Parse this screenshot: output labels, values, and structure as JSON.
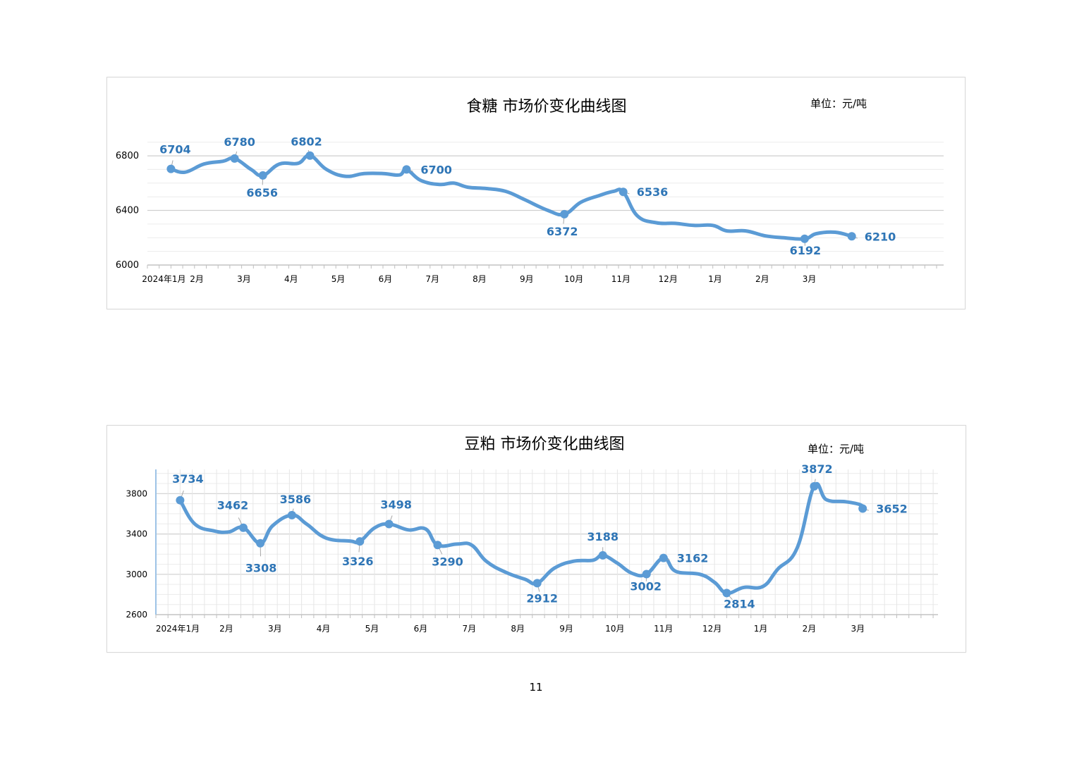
{
  "page": {
    "page_number": "11"
  },
  "colors": {
    "line": "#5b9bd5",
    "label": "#2e75b6",
    "grid": "#d9d9d9",
    "axis_text": "#000000"
  },
  "chart_data": [
    {
      "type": "line",
      "title": "食糖  市场价变化曲线图",
      "unit": "单位：元/吨",
      "ylim": [
        6000,
        6950
      ],
      "yticks": [
        6000,
        6400,
        6800
      ],
      "grid": "horizontal",
      "xlim": [
        0,
        16.9
      ],
      "month_labels": [
        {
          "label": "2024年1月",
          "x": 0.35
        },
        {
          "label": "2月",
          "x": 1.05
        },
        {
          "label": "3月",
          "x": 2.05
        },
        {
          "label": "4月",
          "x": 3.05
        },
        {
          "label": "5月",
          "x": 4.05
        },
        {
          "label": "6月",
          "x": 5.05
        },
        {
          "label": "7月",
          "x": 6.05
        },
        {
          "label": "8月",
          "x": 7.05
        },
        {
          "label": "9月",
          "x": 8.05
        },
        {
          "label": "10月",
          "x": 9.05
        },
        {
          "label": "11月",
          "x": 10.05
        },
        {
          "label": "12月",
          "x": 11.05
        },
        {
          "label": "1月",
          "x": 12.05
        },
        {
          "label": "2月",
          "x": 13.05
        },
        {
          "label": "3月",
          "x": 14.05
        }
      ],
      "series": [
        {
          "points": [
            [
              0.5,
              6704
            ],
            [
              0.8,
              6680
            ],
            [
              1.2,
              6740
            ],
            [
              1.6,
              6760
            ],
            [
              1.85,
              6780
            ],
            [
              2.2,
              6700
            ],
            [
              2.45,
              6656
            ],
            [
              2.8,
              6740
            ],
            [
              3.2,
              6745
            ],
            [
              3.45,
              6802
            ],
            [
              3.8,
              6700
            ],
            [
              4.2,
              6650
            ],
            [
              4.6,
              6670
            ],
            [
              5.0,
              6670
            ],
            [
              5.35,
              6660
            ],
            [
              5.5,
              6700
            ],
            [
              5.8,
              6620
            ],
            [
              6.2,
              6590
            ],
            [
              6.5,
              6600
            ],
            [
              6.8,
              6570
            ],
            [
              7.2,
              6560
            ],
            [
              7.6,
              6540
            ],
            [
              8.0,
              6480
            ],
            [
              8.5,
              6400
            ],
            [
              8.85,
              6372
            ],
            [
              9.2,
              6460
            ],
            [
              9.6,
              6510
            ],
            [
              9.9,
              6540
            ],
            [
              10.1,
              6536
            ],
            [
              10.4,
              6360
            ],
            [
              10.8,
              6310
            ],
            [
              11.2,
              6305
            ],
            [
              11.6,
              6290
            ],
            [
              12.0,
              6290
            ],
            [
              12.3,
              6250
            ],
            [
              12.7,
              6250
            ],
            [
              13.1,
              6215
            ],
            [
              13.5,
              6200
            ],
            [
              13.95,
              6192
            ],
            [
              14.2,
              6230
            ],
            [
              14.6,
              6240
            ],
            [
              14.95,
              6210
            ]
          ],
          "markers": [
            {
              "x": 0.5,
              "y": 6704,
              "label": "6704"
            },
            {
              "x": 1.85,
              "y": 6780,
              "label": "6780"
            },
            {
              "x": 2.45,
              "y": 6656,
              "label": "6656"
            },
            {
              "x": 3.45,
              "y": 6802,
              "label": "6802"
            },
            {
              "x": 5.5,
              "y": 6700,
              "label": "6700"
            },
            {
              "x": 8.85,
              "y": 6372,
              "label": "6372"
            },
            {
              "x": 10.1,
              "y": 6536,
              "label": "6536"
            },
            {
              "x": 13.95,
              "y": 6192,
              "label": "6192"
            },
            {
              "x": 14.95,
              "y": 6210,
              "label": "6210"
            }
          ]
        }
      ]
    },
    {
      "type": "line",
      "title": "豆粕  市场价变化曲线图",
      "unit": "单位：元/吨",
      "ylim": [
        2600,
        4040
      ],
      "yticks": [
        2600,
        3000,
        3400,
        3800
      ],
      "grid": "both",
      "xlim": [
        0,
        16.1
      ],
      "month_labels": [
        {
          "label": "2024年1月",
          "x": 0.45
        },
        {
          "label": "2月",
          "x": 1.45
        },
        {
          "label": "3月",
          "x": 2.45
        },
        {
          "label": "4月",
          "x": 3.45
        },
        {
          "label": "5月",
          "x": 4.45
        },
        {
          "label": "6月",
          "x": 5.45
        },
        {
          "label": "7月",
          "x": 6.45
        },
        {
          "label": "8月",
          "x": 7.45
        },
        {
          "label": "9月",
          "x": 8.45
        },
        {
          "label": "10月",
          "x": 9.45
        },
        {
          "label": "11月",
          "x": 10.45
        },
        {
          "label": "12月",
          "x": 11.45
        },
        {
          "label": "1月",
          "x": 12.45
        },
        {
          "label": "2月",
          "x": 13.45
        },
        {
          "label": "3月",
          "x": 14.45
        }
      ],
      "series": [
        {
          "points": [
            [
              0.5,
              3734
            ],
            [
              0.8,
              3500
            ],
            [
              1.2,
              3430
            ],
            [
              1.5,
              3420
            ],
            [
              1.8,
              3462
            ],
            [
              2.15,
              3308
            ],
            [
              2.4,
              3480
            ],
            [
              2.8,
              3586
            ],
            [
              3.1,
              3500
            ],
            [
              3.5,
              3360
            ],
            [
              4.0,
              3330
            ],
            [
              4.2,
              3326
            ],
            [
              4.5,
              3460
            ],
            [
              4.8,
              3498
            ],
            [
              5.2,
              3440
            ],
            [
              5.55,
              3450
            ],
            [
              5.8,
              3290
            ],
            [
              6.2,
              3300
            ],
            [
              6.5,
              3290
            ],
            [
              6.8,
              3130
            ],
            [
              7.2,
              3020
            ],
            [
              7.6,
              2950
            ],
            [
              7.85,
              2912
            ],
            [
              8.2,
              3060
            ],
            [
              8.6,
              3130
            ],
            [
              9.0,
              3140
            ],
            [
              9.2,
              3188
            ],
            [
              9.5,
              3110
            ],
            [
              9.8,
              3010
            ],
            [
              10.1,
              3002
            ],
            [
              10.45,
              3162
            ],
            [
              10.7,
              3030
            ],
            [
              11.2,
              3000
            ],
            [
              11.5,
              2920
            ],
            [
              11.75,
              2814
            ],
            [
              12.1,
              2870
            ],
            [
              12.5,
              2880
            ],
            [
              12.8,
              3050
            ],
            [
              13.2,
              3260
            ],
            [
              13.55,
              3872
            ],
            [
              13.8,
              3740
            ],
            [
              14.2,
              3720
            ],
            [
              14.5,
              3690
            ],
            [
              14.55,
              3652
            ]
          ],
          "markers": [
            {
              "x": 0.5,
              "y": 3734,
              "label": "3734"
            },
            {
              "x": 1.8,
              "y": 3462,
              "label": "3462"
            },
            {
              "x": 2.15,
              "y": 3308,
              "label": "3308"
            },
            {
              "x": 2.8,
              "y": 3586,
              "label": "3586"
            },
            {
              "x": 4.2,
              "y": 3326,
              "label": "3326"
            },
            {
              "x": 4.8,
              "y": 3498,
              "label": "3498"
            },
            {
              "x": 5.8,
              "y": 3290,
              "label": "3290"
            },
            {
              "x": 7.85,
              "y": 2912,
              "label": "2912"
            },
            {
              "x": 9.2,
              "y": 3188,
              "label": "3188"
            },
            {
              "x": 10.1,
              "y": 3002,
              "label": "3002"
            },
            {
              "x": 10.45,
              "y": 3162,
              "label": "3162"
            },
            {
              "x": 11.75,
              "y": 2814,
              "label": "2814"
            },
            {
              "x": 13.55,
              "y": 3872,
              "label": "3872"
            },
            {
              "x": 14.55,
              "y": 3652,
              "label": "3652"
            }
          ]
        }
      ]
    }
  ]
}
